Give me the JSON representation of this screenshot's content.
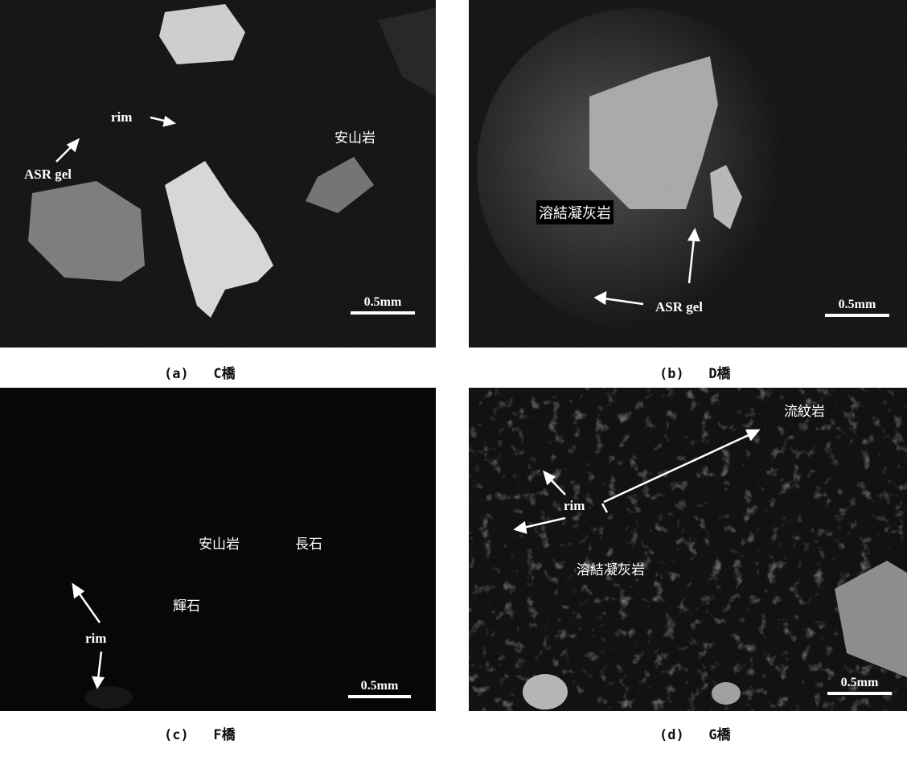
{
  "panels": {
    "a": {
      "caption": "(a)   C橋",
      "labels": {
        "rim": "rim",
        "andesite": "安山岩",
        "asr_gel": "ASR gel"
      },
      "scale": "0.5mm"
    },
    "b": {
      "caption": "(b)   D橋",
      "labels": {
        "welded_tuff": "溶結凝灰岩",
        "asr_gel": "ASR gel"
      },
      "scale": "0.5mm"
    },
    "c": {
      "caption": "(c)   F橋",
      "labels": {
        "andesite": "安山岩",
        "feldspar": "長石",
        "pyroxene": "輝石",
        "rim": "rim"
      },
      "scale": "0.5mm"
    },
    "d": {
      "caption": "(d)   G橋",
      "labels": {
        "rhyolite": "流紋岩",
        "rim": "rim",
        "welded_tuff": "溶結凝灰岩"
      },
      "scale": "0.5mm"
    }
  }
}
